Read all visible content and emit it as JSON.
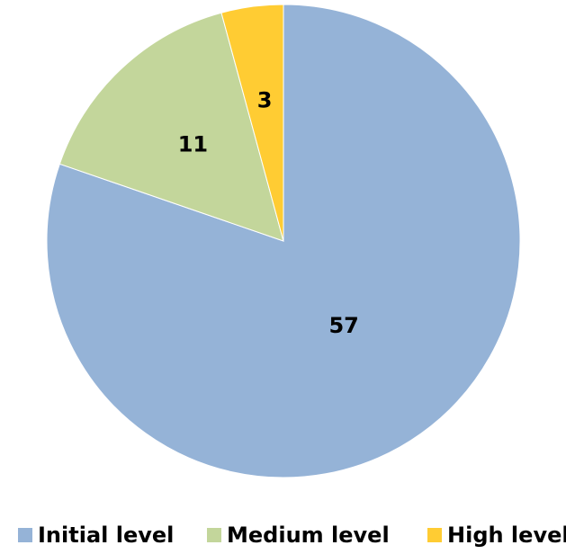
{
  "chart_data": {
    "type": "pie",
    "title": "",
    "categories": [
      "Initial level",
      "Medium level",
      "High level"
    ],
    "values": [
      57,
      11,
      3
    ],
    "colors": [
      "#95b3d7",
      "#c3d69b",
      "#ffcc33"
    ],
    "data_labels": [
      "57",
      "11",
      "3"
    ],
    "start_angle_deg": 0,
    "direction": "clockwise",
    "legend_position": "bottom"
  }
}
